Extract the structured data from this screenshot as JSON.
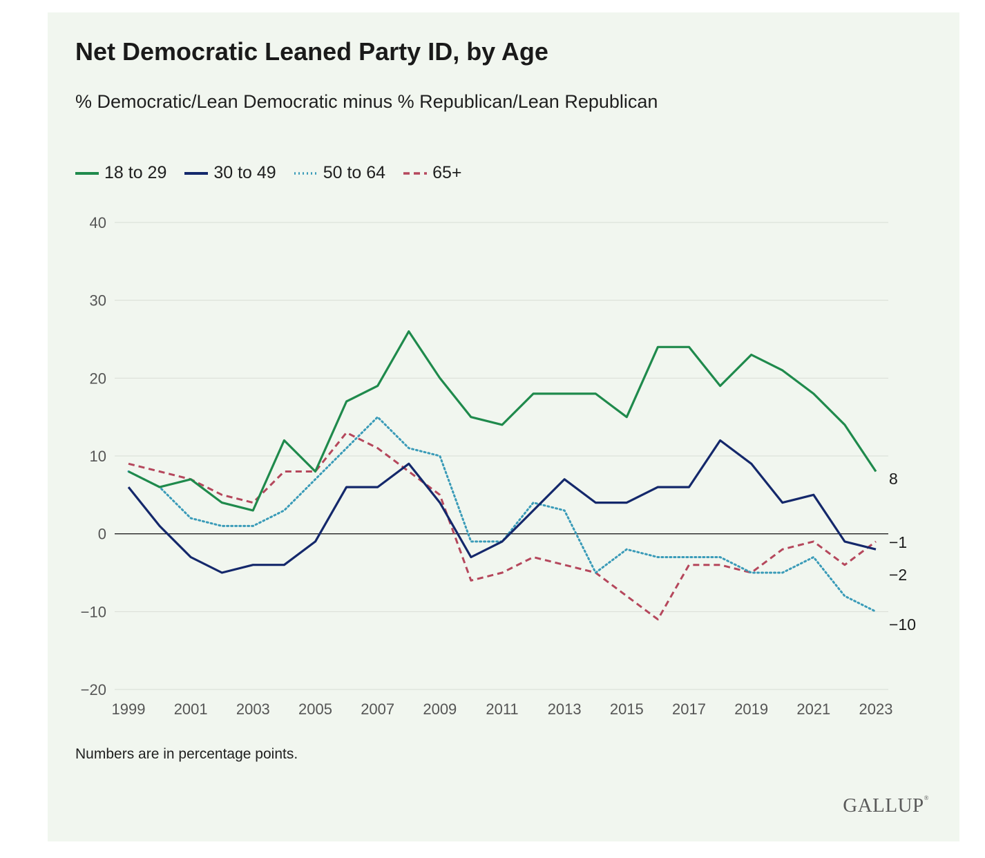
{
  "chart_data": {
    "type": "line",
    "title": "Net Democratic Leaned Party ID, by Age",
    "subtitle": "% Democratic/Lean Democratic minus % Republican/Lean Republican",
    "x": [
      1999,
      2000,
      2001,
      2002,
      2003,
      2004,
      2005,
      2006,
      2007,
      2008,
      2009,
      2010,
      2011,
      2012,
      2013,
      2014,
      2015,
      2016,
      2017,
      2018,
      2019,
      2020,
      2021,
      2022,
      2023
    ],
    "xticks": [
      "1999",
      "2001",
      "2003",
      "2005",
      "2007",
      "2009",
      "2011",
      "2013",
      "2015",
      "2017",
      "2019",
      "2021",
      "2023"
    ],
    "yticks": [
      "40",
      "30",
      "20",
      "10",
      "0",
      "−10",
      "−20"
    ],
    "ylim": [
      -20,
      40
    ],
    "grid": true,
    "legend_position": "top-left",
    "series": [
      {
        "name": "18 to 29",
        "color": "#1f8a4c",
        "style": "solid",
        "values": [
          8,
          6,
          7,
          4,
          3,
          12,
          8,
          17,
          19,
          26,
          20,
          15,
          14,
          18,
          18,
          18,
          15,
          24,
          24,
          19,
          23,
          21,
          18,
          14,
          8
        ]
      },
      {
        "name": "30 to 49",
        "color": "#14286b",
        "style": "solid",
        "values": [
          6,
          1,
          -3,
          -5,
          -4,
          -4,
          -1,
          6,
          6,
          9,
          4,
          -3,
          -1,
          3,
          7,
          4,
          4,
          6,
          6,
          12,
          9,
          4,
          5,
          -1,
          -2
        ]
      },
      {
        "name": "50 to 64",
        "color": "#3a9bb8",
        "style": "dotted",
        "values": [
          8,
          6,
          2,
          1,
          1,
          3,
          7,
          11,
          15,
          11,
          10,
          -1,
          -1,
          4,
          3,
          -5,
          -2,
          -3,
          -3,
          -3,
          -5,
          -5,
          -3,
          -8,
          -10
        ]
      },
      {
        "name": "65+",
        "color": "#b5475c",
        "style": "dashed",
        "values": [
          9,
          8,
          7,
          5,
          4,
          8,
          8,
          13,
          11,
          8,
          5,
          -6,
          -5,
          -3,
          -4,
          -5,
          -8,
          -11,
          -4,
          -4,
          -5,
          -2,
          -1,
          -4,
          -1
        ]
      }
    ],
    "end_labels": [
      "8",
      "−1",
      "−2",
      "−10"
    ],
    "note": "Numbers are in percentage points.",
    "source": "GALLUP"
  }
}
